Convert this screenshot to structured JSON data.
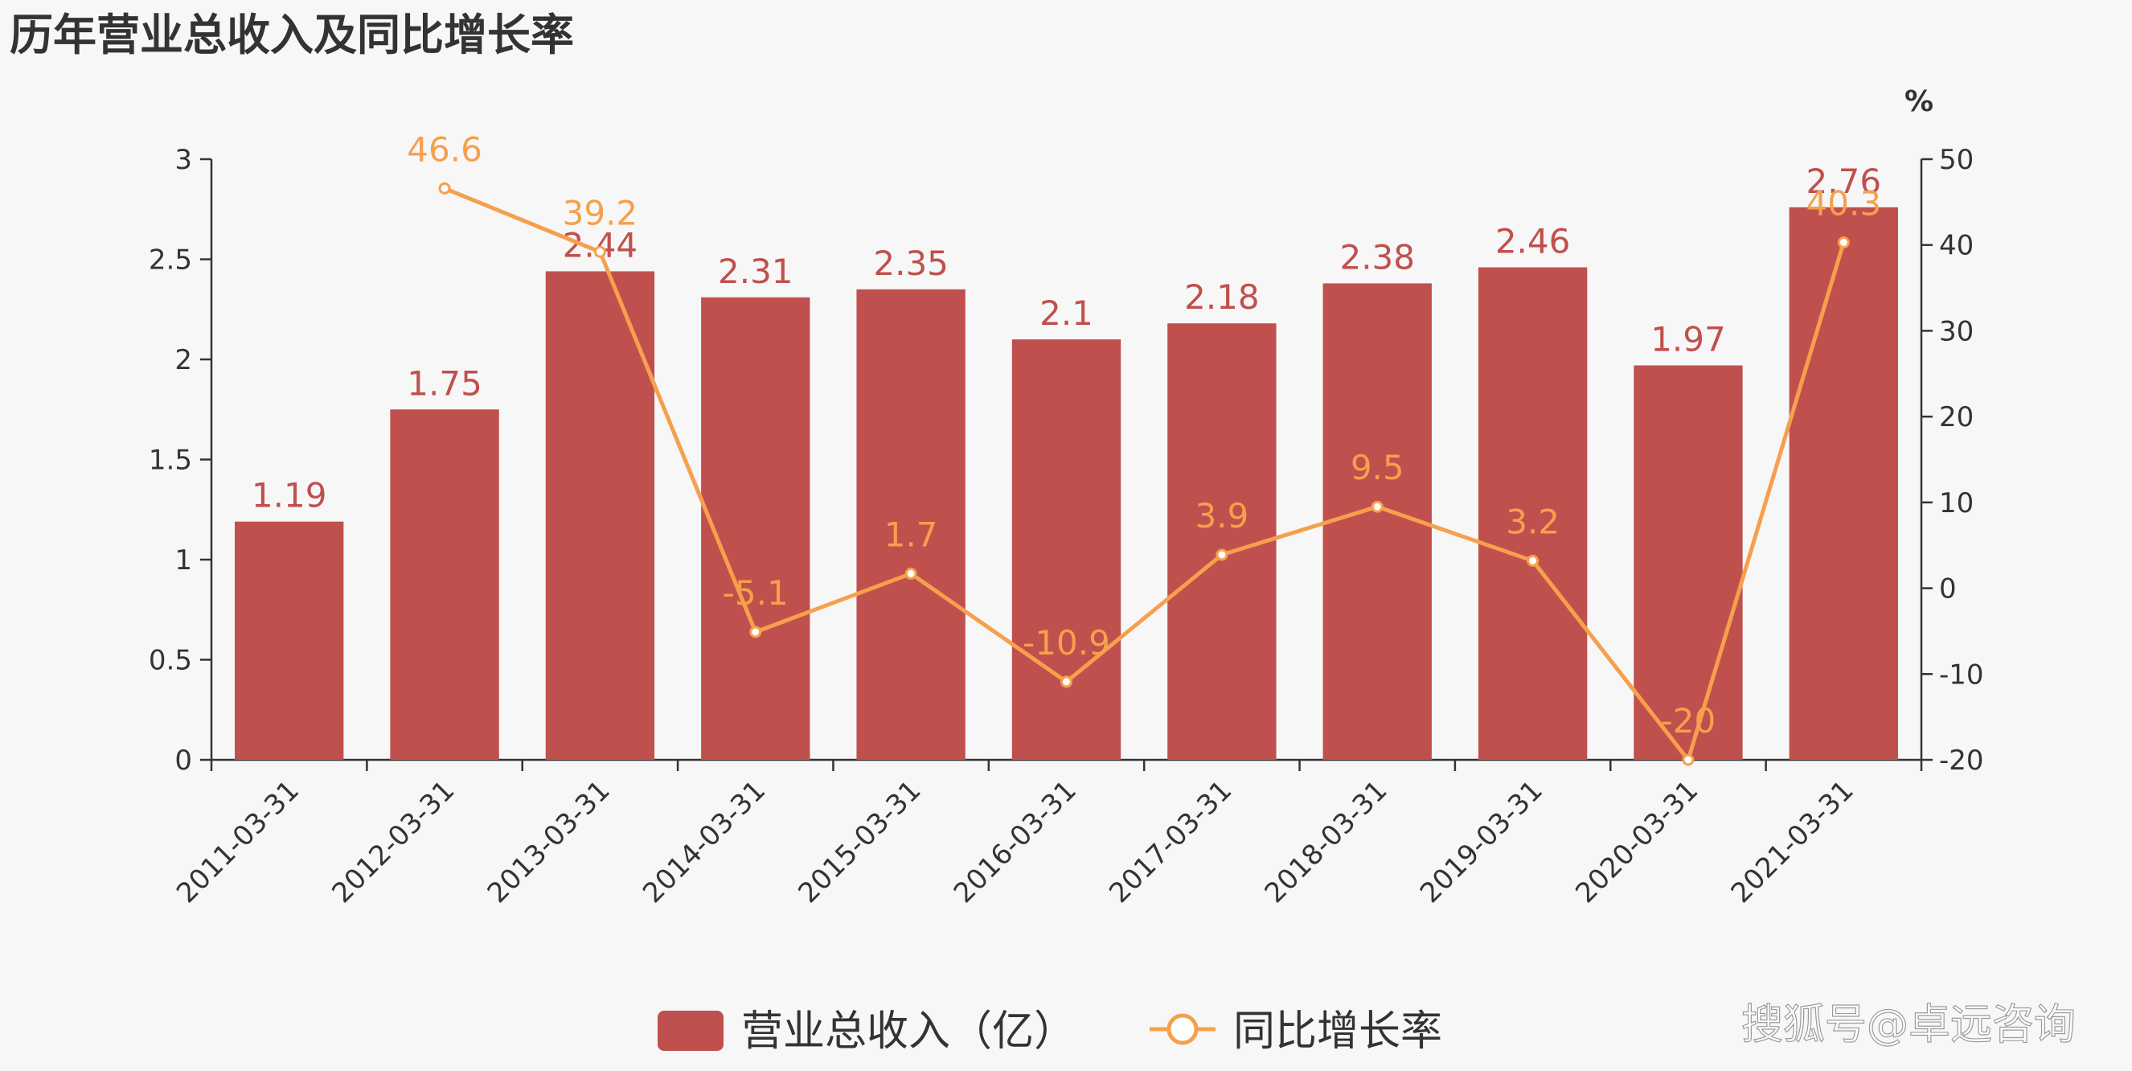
{
  "chart_data": {
    "type": "bar",
    "title": "历年营业总收入及同比增长率",
    "categories": [
      "2011-03-31",
      "2012-03-31",
      "2013-03-31",
      "2014-03-31",
      "2015-03-31",
      "2016-03-31",
      "2017-03-31",
      "2018-03-31",
      "2019-03-31",
      "2020-03-31",
      "2021-03-31"
    ],
    "series": [
      {
        "name": "营业总收入（亿）",
        "type": "bar",
        "axis": "left",
        "values": [
          1.19,
          1.75,
          2.44,
          2.31,
          2.35,
          2.1,
          2.18,
          2.38,
          2.46,
          1.97,
          2.76
        ],
        "labels": [
          "1.19",
          "1.75",
          "2.44",
          "2.31",
          "2.35",
          "2.1",
          "2.18",
          "2.38",
          "2.46",
          "1.97",
          "2.76"
        ],
        "color": "#c0504d"
      },
      {
        "name": "同比增长率",
        "type": "line",
        "axis": "right",
        "values": [
          null,
          46.6,
          39.2,
          -5.1,
          1.7,
          -10.9,
          3.9,
          9.5,
          3.2,
          -20,
          40.3
        ],
        "labels": [
          "",
          "46.6",
          "39.2",
          "-5.1",
          "1.7",
          "-10.9",
          "3.9",
          "9.5",
          "3.2",
          "-20",
          "40.3"
        ],
        "color": "#f6a04d"
      }
    ],
    "y_left": {
      "range": [
        0,
        3
      ],
      "ticks": [
        "0",
        "0.5",
        "1",
        "1.5",
        "2",
        "2.5",
        "3"
      ]
    },
    "y_right": {
      "range": [
        -20,
        50
      ],
      "ticks": [
        "-20",
        "-10",
        "0",
        "10",
        "20",
        "30",
        "40",
        "50"
      ],
      "unit": "%"
    },
    "legend_position": "bottom-center",
    "grid": false
  },
  "watermark": "搜狐号@卓远咨询"
}
